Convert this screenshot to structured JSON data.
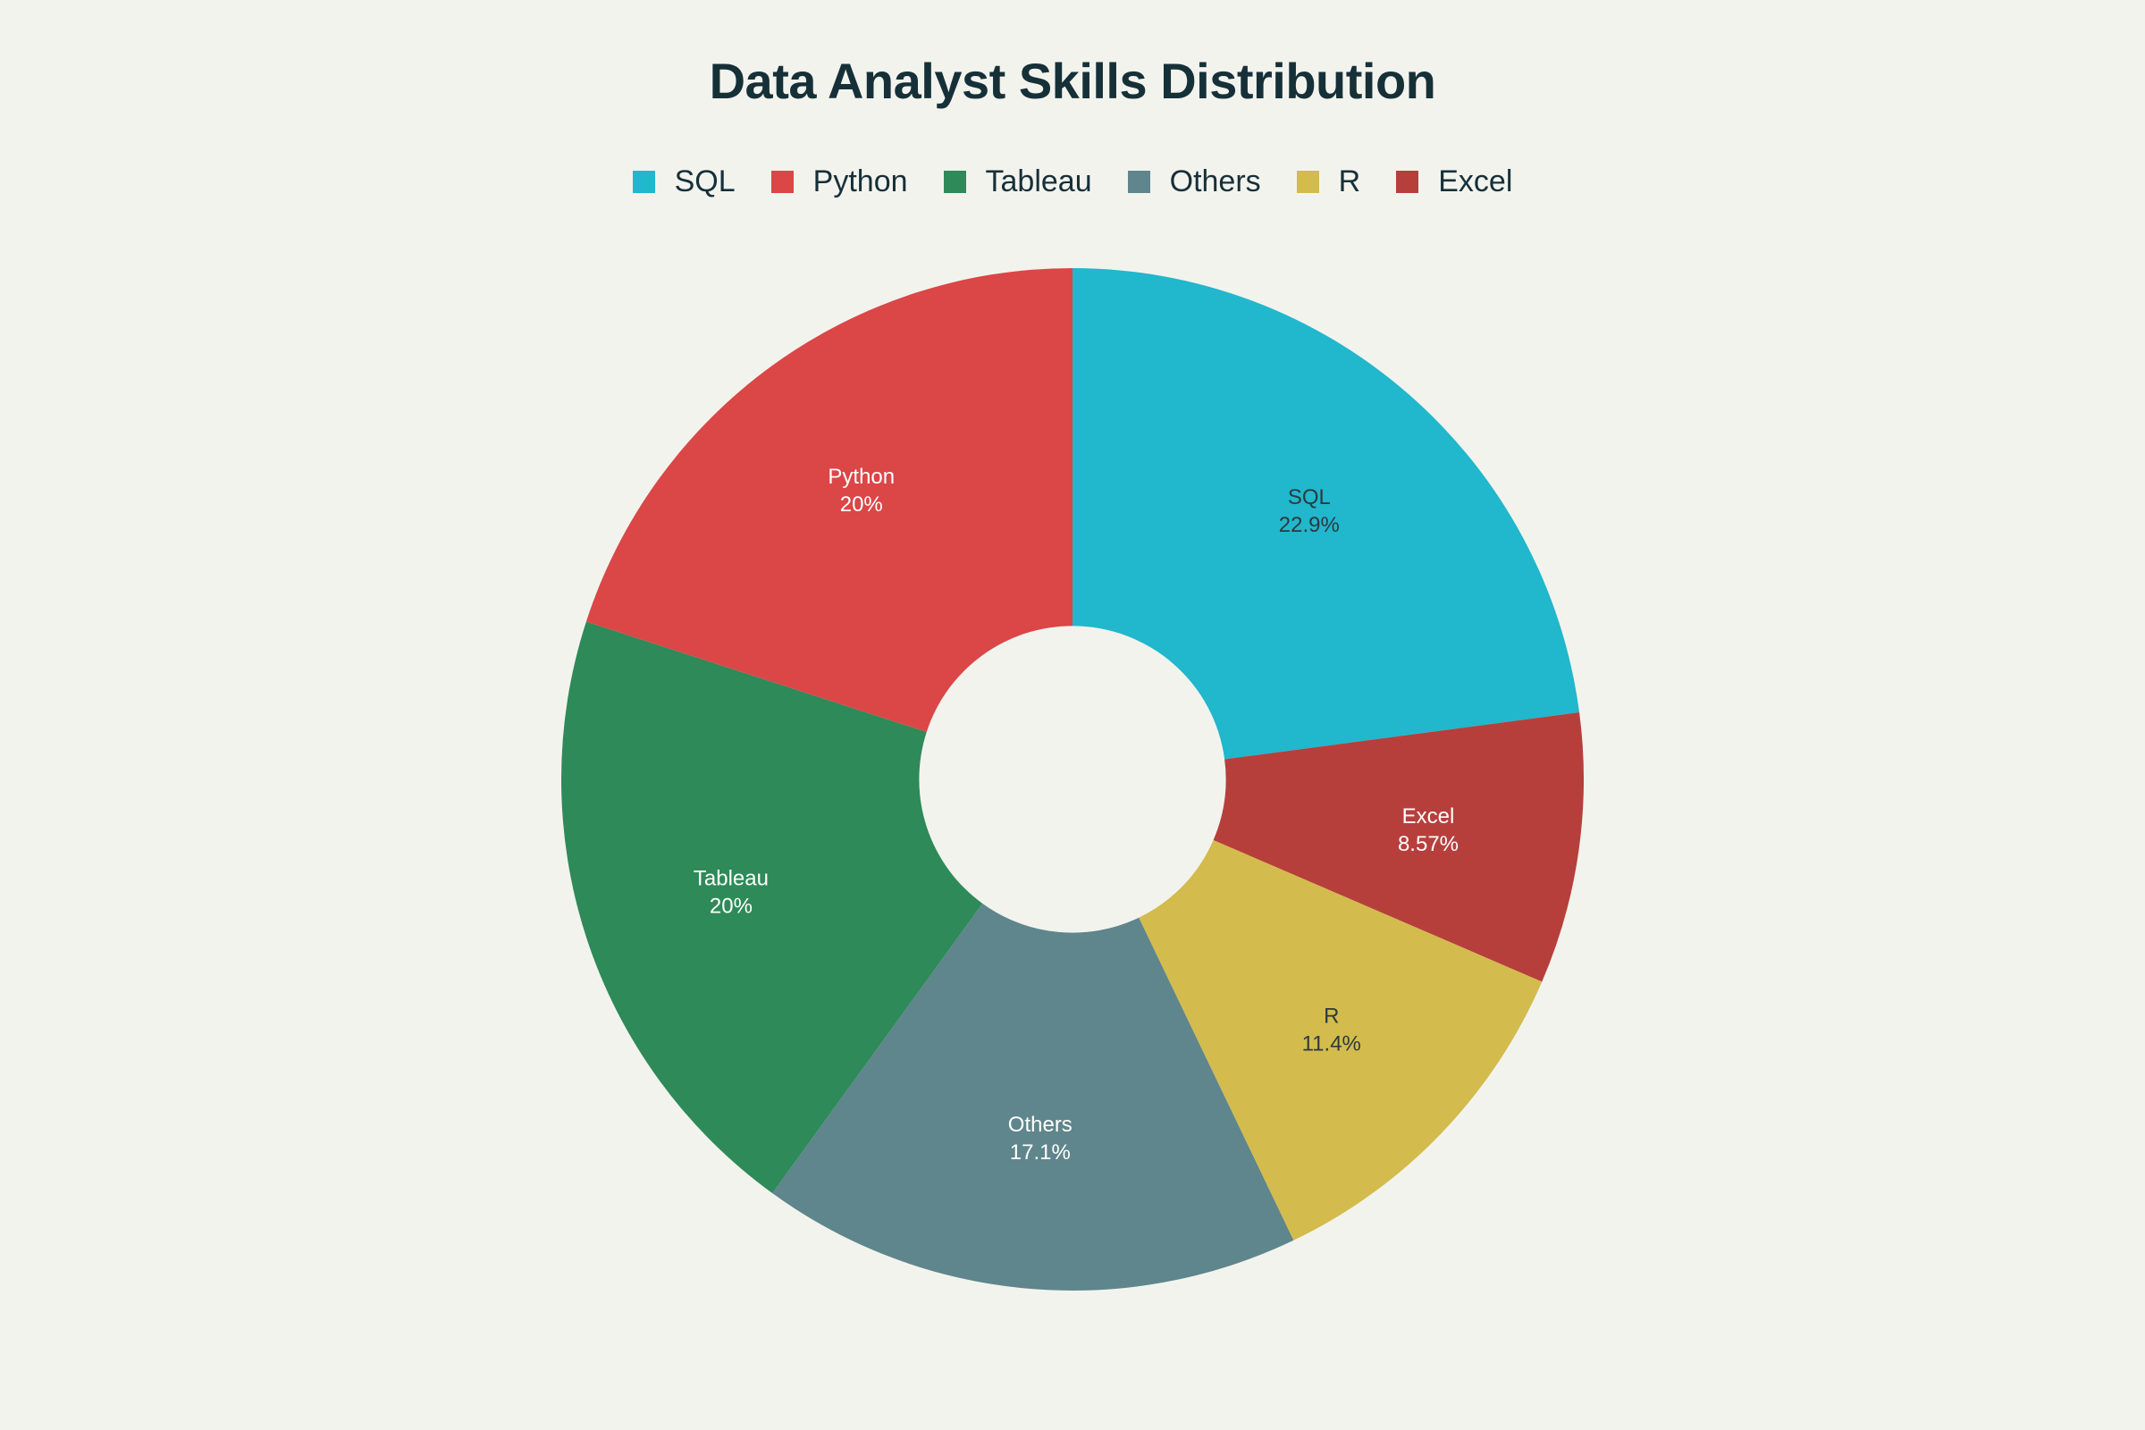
{
  "chart_data": {
    "type": "pie",
    "title": "Data Analyst Skills Distribution",
    "hole": 0.3,
    "legend_position": "top",
    "slices": [
      {
        "label": "SQL",
        "value": 22.9,
        "percent_label": "22.9%",
        "color": "#21b7cc",
        "label_color": "#2b3a3e"
      },
      {
        "label": "Excel",
        "value": 8.57,
        "percent_label": "8.57%",
        "color": "#b63f3c",
        "label_color": "#ffffff"
      },
      {
        "label": "R",
        "value": 11.4,
        "percent_label": "11.4%",
        "color": "#d3bb4d",
        "label_color": "#2b3a3e"
      },
      {
        "label": "Others",
        "value": 17.1,
        "percent_label": "17.1%",
        "color": "#5e868c",
        "label_color": "#ffffff"
      },
      {
        "label": "Tableau",
        "value": 20,
        "percent_label": "20%",
        "color": "#2e8a58",
        "label_color": "#ffffff"
      },
      {
        "label": "Python",
        "value": 20,
        "percent_label": "20%",
        "color": "#db4647",
        "label_color": "#ffffff"
      }
    ],
    "legend": [
      {
        "label": "SQL",
        "color": "#21b7cc"
      },
      {
        "label": "Python",
        "color": "#db4647"
      },
      {
        "label": "Tableau",
        "color": "#2e8a58"
      },
      {
        "label": "Others",
        "color": "#5e868c"
      },
      {
        "label": "R",
        "color": "#d3bb4d"
      },
      {
        "label": "Excel",
        "color": "#b63f3c"
      }
    ]
  }
}
